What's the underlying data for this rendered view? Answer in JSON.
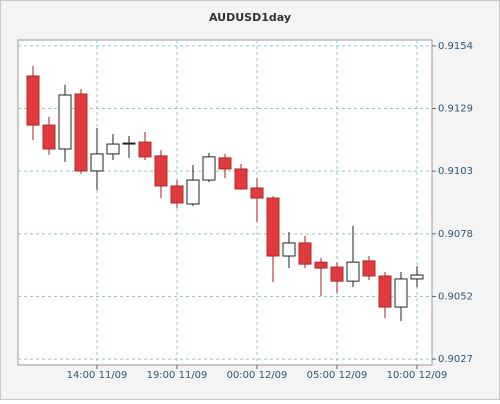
{
  "chart_data": {
    "type": "candlestick",
    "title": "AUDUSD1day",
    "categories": [
      null,
      null,
      null,
      null,
      "14:00 11/09",
      null,
      null,
      null,
      null,
      "19:00 11/09",
      null,
      null,
      null,
      null,
      "00:00 12/09",
      null,
      null,
      null,
      null,
      "05:00 12/09",
      null,
      null,
      null,
      null,
      "10:00 12/09"
    ],
    "open": [
      0.91418,
      0.91219,
      0.91122,
      0.91345,
      0.91033,
      0.91102,
      0.91142,
      0.9115,
      0.91094,
      0.90972,
      0.90899,
      0.90996,
      0.91086,
      0.91041,
      0.90964,
      0.90923,
      0.90688,
      0.90741,
      0.90663,
      0.90643,
      0.90586,
      0.90668,
      0.90607,
      0.90481,
      0.90595
    ],
    "high": [
      0.91459,
      0.91252,
      0.91382,
      0.91366,
      0.91207,
      0.91183,
      0.91175,
      0.91191,
      0.91118,
      0.90996,
      0.91057,
      0.91106,
      0.91102,
      0.91061,
      0.91004,
      0.90931,
      0.90785,
      0.90769,
      0.9068,
      0.90663,
      0.9081,
      0.90688,
      0.90623,
      0.90623,
      0.90647
    ],
    "low": [
      0.91159,
      0.91098,
      0.91069,
      0.91021,
      0.90956,
      0.91077,
      0.91086,
      0.91077,
      0.90923,
      0.90883,
      0.90891,
      0.90988,
      0.91004,
      0.90956,
      0.90826,
      0.90582,
      0.90639,
      0.90639,
      0.90526,
      0.90538,
      0.90562,
      0.9059,
      0.90436,
      0.90424,
      0.90562
    ],
    "close": [
      0.91219,
      0.91122,
      0.91341,
      0.91033,
      0.91102,
      0.91142,
      0.91146,
      0.9109,
      0.90972,
      0.90903,
      0.90996,
      0.9109,
      0.91041,
      0.9096,
      0.90923,
      0.90688,
      0.90741,
      0.90655,
      0.90639,
      0.90586,
      0.90663,
      0.90607,
      0.90481,
      0.90595,
      0.90611
    ],
    "up_color": "#ffffff",
    "down_color": "#e03c3c",
    "ylim": [
      0.90246,
      0.91564
    ],
    "yticks": [
      {
        "value": 0.9027,
        "label": "0.9027"
      },
      {
        "value": 0.90524,
        "label": "0.9052"
      },
      {
        "value": 0.90778,
        "label": "0.9078"
      },
      {
        "value": 0.91032,
        "label": "0.9103"
      },
      {
        "value": 0.91286,
        "label": "0.9129"
      },
      {
        "value": 0.9154,
        "label": "0.9154"
      }
    ],
    "grid": true
  }
}
